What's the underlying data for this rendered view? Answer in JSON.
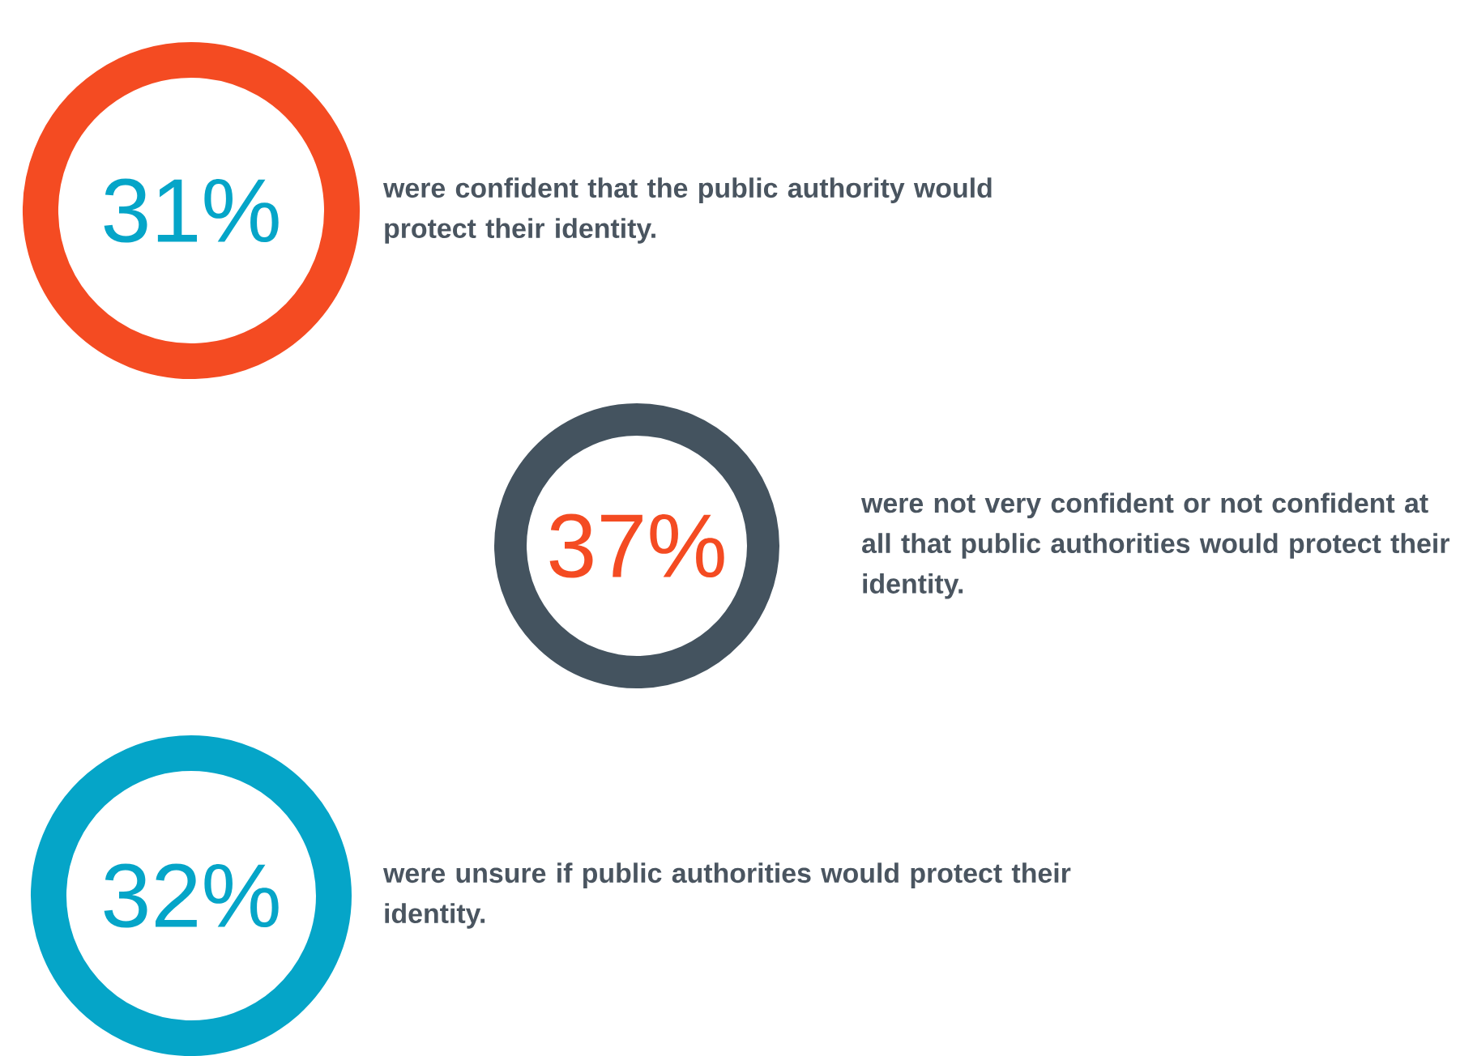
{
  "chart_data": {
    "type": "other",
    "categories": [
      "were confident that the public authority would protect their identity.",
      "were not very confident or not confident at all that public authorities would protect their identity.",
      "were unsure if public authorities would protect their identity."
    ],
    "values": [
      31,
      37,
      32
    ],
    "value_labels": [
      "31%",
      "37%",
      "32%"
    ],
    "colors": [
      "#f44b22",
      "#44535f",
      "#05a5c8"
    ]
  }
}
